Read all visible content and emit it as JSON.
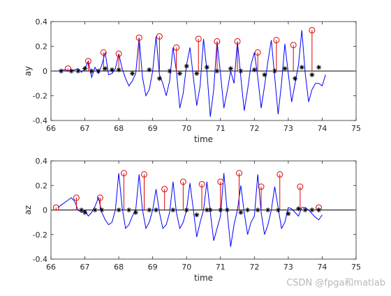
{
  "watermark": "CSDN @fpga和matlab",
  "chart_data": [
    {
      "type": "line",
      "xlabel": "time",
      "ylabel": "ay",
      "xlim": [
        66,
        75
      ],
      "ylim": [
        -0.4,
        0.4
      ],
      "xticks": [
        "66",
        "67",
        "68",
        "69",
        "70",
        "71",
        "72",
        "73",
        "74",
        "75"
      ],
      "yticks": [
        "-0.4",
        "-0.2",
        "0",
        "0.2",
        "0.4"
      ],
      "signal": {
        "color": "#0000ff",
        "x": [
          66.2,
          66.4,
          66.6,
          66.8,
          66.9,
          67.0,
          67.1,
          67.2,
          67.3,
          67.4,
          67.5,
          67.6,
          67.7,
          67.8,
          67.9,
          68.0,
          68.1,
          68.2,
          68.3,
          68.4,
          68.5,
          68.6,
          68.7,
          68.8,
          68.9,
          69.0,
          69.1,
          69.2,
          69.3,
          69.4,
          69.5,
          69.6,
          69.7,
          69.8,
          69.9,
          70.0,
          70.1,
          70.2,
          70.3,
          70.4,
          70.5,
          70.6,
          70.7,
          70.8,
          70.9,
          71.0,
          71.1,
          71.2,
          71.3,
          71.4,
          71.5,
          71.6,
          71.7,
          71.8,
          71.9,
          72.0,
          72.1,
          72.2,
          72.3,
          72.4,
          72.5,
          72.6,
          72.7,
          72.8,
          72.9,
          73.0,
          73.1,
          73.2,
          73.3,
          73.4,
          73.5,
          73.6,
          73.7,
          73.8,
          73.9,
          74.0,
          74.1
        ],
        "y": [
          0.0,
          0.01,
          0.0,
          0.02,
          -0.01,
          0.02,
          0.08,
          -0.05,
          0.03,
          -0.02,
          0.05,
          0.15,
          -0.03,
          -0.02,
          0.02,
          0.14,
          0.02,
          -0.06,
          -0.12,
          -0.08,
          -0.02,
          0.27,
          -0.05,
          -0.2,
          -0.15,
          0.0,
          0.28,
          -0.03,
          -0.1,
          -0.2,
          -0.08,
          0.19,
          0.0,
          -0.3,
          -0.18,
          0.05,
          0.19,
          -0.05,
          -0.28,
          -0.12,
          0.26,
          0.0,
          -0.37,
          -0.15,
          0.24,
          -0.02,
          -0.3,
          -0.16,
          0.0,
          -0.1,
          0.24,
          -0.05,
          -0.32,
          -0.15,
          0.05,
          0.15,
          -0.05,
          -0.3,
          -0.12,
          0.08,
          0.25,
          -0.05,
          -0.35,
          -0.1,
          0.22,
          -0.02,
          -0.25,
          -0.1,
          0.05,
          0.33,
          -0.02,
          -0.25,
          -0.15,
          -0.1,
          -0.1,
          -0.12,
          -0.03
        ]
      },
      "peaks": {
        "color": "#dd0000",
        "x": [
          66.5,
          67.1,
          67.55,
          68.0,
          68.6,
          69.2,
          69.7,
          70.35,
          70.9,
          71.5,
          72.1,
          72.65,
          73.15,
          73.7
        ],
        "y": [
          0.02,
          0.08,
          0.15,
          0.14,
          0.27,
          0.28,
          0.19,
          0.26,
          0.24,
          0.24,
          0.15,
          0.25,
          0.21,
          0.33
        ]
      },
      "valleys": {
        "color": "#000000",
        "x": [
          66.3,
          66.6,
          66.8,
          67.0,
          67.2,
          67.4,
          67.6,
          67.8,
          68.0,
          68.4,
          68.9,
          69.2,
          69.5,
          69.8,
          70.0,
          70.3,
          70.6,
          70.9,
          71.3,
          71.6,
          72.0,
          72.3,
          72.6,
          72.9,
          73.2,
          73.4,
          73.7,
          73.9
        ],
        "y": [
          0.0,
          0.0,
          0.0,
          0.02,
          0.0,
          0.0,
          0.02,
          0.01,
          0.01,
          -0.02,
          0.01,
          -0.06,
          0.0,
          -0.02,
          0.04,
          -0.02,
          0.03,
          0.0,
          0.02,
          0.0,
          0.01,
          -0.03,
          0.0,
          0.02,
          -0.06,
          0.03,
          -0.03,
          0.03
        ]
      }
    },
    {
      "type": "line",
      "xlabel": "time",
      "ylabel": "az",
      "xlim": [
        66,
        75
      ],
      "ylim": [
        -0.4,
        0.4
      ],
      "xticks": [
        "66",
        "67",
        "68",
        "69",
        "70",
        "71",
        "72",
        "73",
        "74",
        "75"
      ],
      "yticks": [
        "-0.4",
        "-0.2",
        "0",
        "0.2",
        "0.4"
      ],
      "signal": {
        "color": "#0000ff",
        "x": [
          66.2,
          66.3,
          66.5,
          66.6,
          66.7,
          66.8,
          66.9,
          67.0,
          67.1,
          67.2,
          67.3,
          67.4,
          67.5,
          67.6,
          67.7,
          67.8,
          67.9,
          68.0,
          68.1,
          68.2,
          68.3,
          68.4,
          68.5,
          68.6,
          68.7,
          68.8,
          68.9,
          69.0,
          69.1,
          69.2,
          69.3,
          69.4,
          69.5,
          69.6,
          69.7,
          69.8,
          69.9,
          70.0,
          70.1,
          70.2,
          70.3,
          70.4,
          70.5,
          70.6,
          70.7,
          70.8,
          70.9,
          71.0,
          71.1,
          71.2,
          71.3,
          71.4,
          71.5,
          71.6,
          71.7,
          71.8,
          71.9,
          72.0,
          72.1,
          72.2,
          72.3,
          72.4,
          72.5,
          72.6,
          72.7,
          72.8,
          72.9,
          73.0,
          73.1,
          73.2,
          73.3,
          73.4,
          73.5,
          73.6,
          73.7,
          73.8,
          73.9,
          74.0
        ],
        "y": [
          0.02,
          0.04,
          0.08,
          0.1,
          0.07,
          0.0,
          -0.02,
          0.0,
          -0.05,
          -0.02,
          0.03,
          0.1,
          -0.02,
          -0.08,
          -0.12,
          -0.1,
          0.0,
          0.3,
          0.02,
          -0.15,
          -0.12,
          -0.05,
          0.0,
          0.29,
          0.0,
          -0.15,
          -0.1,
          0.0,
          0.17,
          -0.02,
          -0.15,
          -0.12,
          -0.02,
          0.23,
          -0.02,
          -0.15,
          -0.1,
          0.0,
          0.22,
          0.0,
          -0.22,
          -0.1,
          0.0,
          0.23,
          -0.02,
          -0.25,
          -0.15,
          -0.05,
          0.3,
          -0.02,
          -0.3,
          -0.12,
          0.0,
          0.2,
          -0.02,
          -0.2,
          -0.1,
          -0.05,
          0.29,
          -0.02,
          -0.2,
          -0.12,
          0.0,
          0.19,
          0.02,
          -0.15,
          -0.1,
          0.02,
          0.01,
          -0.02,
          -0.05,
          0.02,
          0.02,
          0.0,
          -0.03,
          -0.06,
          -0.08,
          -0.04
        ]
      },
      "peaks": {
        "color": "#dd0000",
        "x": [
          66.15,
          66.75,
          67.45,
          68.15,
          68.75,
          69.35,
          69.9,
          70.45,
          71.0,
          71.55,
          72.2,
          72.75,
          73.35,
          73.9
        ],
        "y": [
          0.02,
          0.1,
          0.1,
          0.3,
          0.29,
          0.17,
          0.23,
          0.21,
          0.23,
          0.3,
          0.19,
          0.29,
          0.19,
          0.02
        ]
      },
      "valleys": {
        "color": "#000000",
        "x": [
          66.9,
          67.0,
          67.3,
          67.5,
          68.0,
          68.3,
          68.5,
          68.9,
          69.1,
          69.6,
          70.0,
          70.3,
          70.6,
          70.7,
          71.0,
          71.2,
          71.6,
          71.8,
          72.1,
          72.4,
          72.7,
          73.0,
          73.3,
          73.5,
          73.7,
          73.9
        ],
        "y": [
          0.0,
          -0.02,
          0.0,
          0.0,
          0.0,
          0.0,
          -0.02,
          0.0,
          0.0,
          0.0,
          0.0,
          -0.04,
          0.0,
          0.0,
          0.0,
          0.0,
          -0.02,
          0.0,
          0.0,
          0.0,
          0.0,
          -0.03,
          0.01,
          0.0,
          0.0,
          0.0
        ]
      }
    }
  ]
}
